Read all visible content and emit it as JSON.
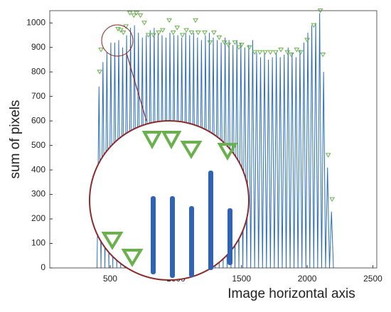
{
  "chart_data": {
    "type": "line",
    "xlabel": "Image horizontal axis",
    "ylabel": "sum of pixels",
    "xlim": [
      40,
      2530
    ],
    "ylim": [
      0,
      1050
    ],
    "xticks": [
      500,
      1000,
      1500,
      2000,
      2500
    ],
    "yticks": [
      0,
      100,
      200,
      300,
      400,
      500,
      600,
      700,
      800,
      900,
      1000
    ],
    "series": [
      {
        "color": "#2a6ebb",
        "x": [
          400,
          415,
          430,
          445,
          460,
          475,
          490,
          505,
          520,
          535,
          550,
          565,
          580,
          595,
          610,
          625,
          640,
          655,
          670,
          685,
          700,
          715,
          730,
          745,
          760,
          775,
          790,
          805,
          820,
          835,
          850,
          865,
          880,
          895,
          910,
          925,
          940,
          955,
          970,
          985,
          1000,
          1015,
          1030,
          1045,
          1060,
          1075,
          1090,
          1105,
          1120,
          1135,
          1150,
          1165,
          1180,
          1195,
          1210,
          1225,
          1240,
          1255,
          1270,
          1285,
          1300,
          1315,
          1330,
          1345,
          1360,
          1375,
          1390,
          1405,
          1420,
          1435,
          1450,
          1465,
          1480,
          1495,
          1510,
          1525,
          1540,
          1555,
          1570,
          1585,
          1600,
          1615,
          1630,
          1645,
          1660,
          1675,
          1690,
          1705,
          1720,
          1735,
          1750,
          1765,
          1780,
          1795,
          1810,
          1825,
          1840,
          1855,
          1870,
          1885,
          1900,
          1915,
          1930,
          1945,
          1960,
          1975,
          1990,
          2005,
          2020,
          2035,
          2050,
          2065,
          2080,
          2095,
          2110,
          2125,
          2140,
          2155,
          2170,
          2185,
          2200
        ],
        "values": [
          0,
          740,
          0,
          840,
          0,
          880,
          0,
          920,
          0,
          920,
          0,
          930,
          0,
          900,
          0,
          950,
          0,
          980,
          0,
          990,
          0,
          960,
          0,
          940,
          0,
          950,
          0,
          970,
          0,
          980,
          0,
          960,
          0,
          950,
          0,
          940,
          0,
          960,
          0,
          950,
          0,
          950,
          0,
          940,
          0,
          960,
          0,
          950,
          0,
          960,
          0,
          940,
          0,
          930,
          0,
          950,
          0,
          960,
          0,
          940,
          0,
          930,
          0,
          920,
          0,
          940,
          0,
          930,
          0,
          910,
          0,
          930,
          0,
          920,
          0,
          900,
          0,
          910,
          0,
          930,
          0,
          880,
          0,
          860,
          0,
          880,
          0,
          850,
          0,
          860,
          0,
          880,
          0,
          860,
          0,
          870,
          0,
          900,
          0,
          880,
          0,
          860,
          0,
          890,
          0,
          920,
          0,
          960,
          0,
          990,
          0,
          1000,
          0,
          1040,
          0,
          800,
          0,
          410,
          0,
          230,
          0
        ]
      },
      {
        "color": "#6ab04c",
        "marker": "triangle-down",
        "x": [
          420,
          430,
          560,
          580,
          600,
          620,
          650,
          680,
          700,
          730,
          760,
          790,
          830,
          870,
          900,
          950,
          980,
          1010,
          1050,
          1080,
          1120,
          1150,
          1170,
          1220,
          1260,
          1290,
          1330,
          1370,
          1400,
          1450,
          1480,
          1500,
          1560,
          1600,
          1640,
          1680,
          1720,
          1760,
          1800,
          1850,
          1880,
          1920,
          1950,
          2000,
          2050,
          2100,
          2120,
          2160,
          2190
        ],
        "values": [
          800,
          890,
          975,
          970,
          960,
          985,
          1040,
          1030,
          1040,
          1030,
          1000,
          950,
          950,
          960,
          970,
          1010,
          960,
          980,
          950,
          970,
          960,
          1010,
          960,
          960,
          920,
          960,
          940,
          920,
          910,
          920,
          900,
          910,
          900,
          880,
          880,
          880,
          880,
          880,
          890,
          880,
          870,
          890,
          880,
          930,
          990,
          1050,
          870,
          460,
          280
        ]
      }
    ]
  }
}
